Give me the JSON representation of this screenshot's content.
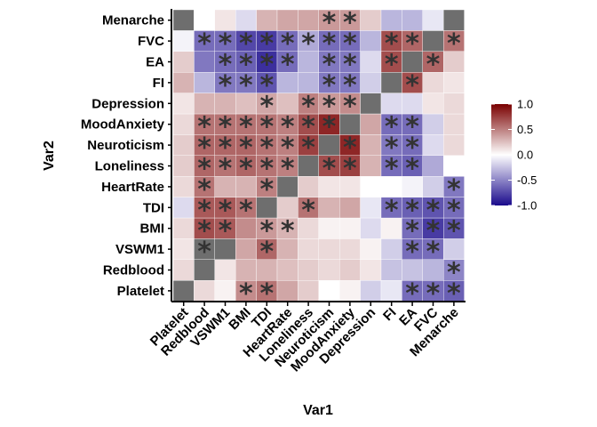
{
  "chart_data": {
    "type": "heatmap",
    "xlabel": "Var1",
    "ylabel": "Var2",
    "variables": [
      "Platelet",
      "Redblood",
      "VSWM1",
      "BMI",
      "TDI",
      "HeartRate",
      "Loneliness",
      "Neuroticism",
      "MoodAnxiety",
      "Depression",
      "FI",
      "EA",
      "FVC",
      "Menarche"
    ],
    "values": [
      [
        null,
        0.15,
        0.05,
        0.45,
        0.55,
        0.35,
        0.2,
        0,
        0.05,
        -0.2,
        -0.1,
        -0.6,
        -0.6,
        -0.65
      ],
      [
        0.15,
        null,
        0.1,
        0.3,
        0.3,
        0.25,
        0.2,
        0.15,
        0.2,
        0.1,
        -0.25,
        -0.25,
        -0.3,
        -0.5
      ],
      [
        0.1,
        null,
        null,
        0.35,
        0.6,
        0.3,
        0.15,
        0.15,
        0.15,
        0.05,
        -0.2,
        -0.6,
        -0.6,
        -0.2
      ],
      [
        0.15,
        0.7,
        0.65,
        0.45,
        0.4,
        0.3,
        0.15,
        0.05,
        0.05,
        -0.15,
        0.05,
        -0.6,
        -0.8,
        -0.7
      ],
      [
        -0.15,
        0.65,
        0.65,
        0.55,
        null,
        0.2,
        0.55,
        0.3,
        0.35,
        -0.1,
        -0.6,
        -0.65,
        -0.7,
        -0.6
      ],
      [
        0.15,
        0.55,
        0.3,
        0.3,
        0.5,
        null,
        0.2,
        0.1,
        0.1,
        0,
        0,
        -0.05,
        -0.2,
        -0.55
      ],
      [
        0.2,
        0.6,
        0.55,
        0.6,
        0.55,
        0.5,
        null,
        0.7,
        0.75,
        0.3,
        -0.6,
        -0.65,
        -0.35,
        0
      ],
      [
        0.2,
        0.6,
        0.6,
        0.6,
        0.55,
        0.5,
        0.75,
        null,
        0.85,
        0.3,
        -0.55,
        -0.6,
        -0.15,
        0.15
      ],
      [
        0.15,
        0.55,
        0.55,
        0.55,
        0.55,
        0.5,
        0.7,
        0.85,
        null,
        0.35,
        -0.6,
        -0.6,
        -0.2,
        0.15
      ],
      [
        0.1,
        0.3,
        0.3,
        0.25,
        0.35,
        0.25,
        0.5,
        0.4,
        0.45,
        null,
        -0.15,
        -0.15,
        0.1,
        0.15
      ],
      [
        0.3,
        -0.3,
        -0.55,
        -0.55,
        -0.7,
        -0.3,
        -0.3,
        -0.55,
        -0.55,
        -0.2,
        null,
        0.7,
        0.15,
        0.1
      ],
      [
        0.2,
        -0.55,
        -0.6,
        -0.65,
        -0.85,
        -0.6,
        -0.3,
        -0.55,
        -0.55,
        -0.15,
        0.7,
        null,
        0.6,
        0.2
      ],
      [
        -0.05,
        -0.6,
        -0.6,
        -0.75,
        -0.8,
        -0.6,
        -0.35,
        -0.6,
        -0.6,
        -0.3,
        0.7,
        0.6,
        null,
        0.55
      ],
      [
        null,
        0,
        0.1,
        -0.15,
        0.3,
        0.35,
        0.35,
        0.4,
        0.4,
        0.2,
        -0.3,
        -0.3,
        -0.1,
        null
      ]
    ],
    "significant": [
      [
        false,
        false,
        false,
        true,
        true,
        false,
        false,
        false,
        false,
        false,
        false,
        true,
        true,
        true
      ],
      [
        false,
        false,
        false,
        false,
        false,
        false,
        false,
        false,
        false,
        false,
        false,
        false,
        false,
        true
      ],
      [
        false,
        true,
        false,
        false,
        true,
        false,
        false,
        false,
        false,
        false,
        false,
        true,
        true,
        false
      ],
      [
        false,
        true,
        true,
        false,
        true,
        true,
        false,
        false,
        false,
        false,
        false,
        true,
        true,
        true
      ],
      [
        false,
        true,
        true,
        true,
        false,
        false,
        true,
        false,
        false,
        false,
        true,
        true,
        true,
        true
      ],
      [
        false,
        true,
        false,
        false,
        true,
        false,
        false,
        false,
        false,
        false,
        false,
        false,
        false,
        true
      ],
      [
        false,
        true,
        true,
        true,
        true,
        true,
        false,
        true,
        true,
        false,
        true,
        true,
        false,
        false
      ],
      [
        false,
        true,
        true,
        true,
        true,
        true,
        true,
        false,
        true,
        false,
        true,
        true,
        false,
        false
      ],
      [
        false,
        true,
        true,
        true,
        true,
        true,
        true,
        true,
        false,
        false,
        true,
        true,
        false,
        false
      ],
      [
        false,
        false,
        false,
        false,
        true,
        false,
        true,
        true,
        true,
        false,
        false,
        false,
        false,
        false
      ],
      [
        false,
        false,
        true,
        true,
        true,
        false,
        false,
        true,
        true,
        false,
        false,
        true,
        false,
        false
      ],
      [
        false,
        false,
        true,
        true,
        true,
        true,
        false,
        true,
        true,
        false,
        true,
        false,
        true,
        false
      ],
      [
        false,
        true,
        true,
        true,
        true,
        true,
        true,
        true,
        true,
        false,
        true,
        true,
        false,
        true
      ],
      [
        false,
        false,
        false,
        false,
        false,
        false,
        false,
        true,
        true,
        false,
        false,
        false,
        false,
        false
      ]
    ],
    "significance_marker": "*",
    "colorscale": {
      "min": -1.0,
      "max": 1.0,
      "low": "#1a0a8c",
      "mid": "#ffffff",
      "high": "#7a0000",
      "na_color": "#6e6e6e",
      "ticks": [
        1.0,
        0.5,
        0.0,
        -0.5,
        -1.0
      ],
      "tick_labels": [
        "1.0",
        "0.5",
        "0.0",
        "-0.5",
        "-1.0"
      ]
    },
    "legend_position": "right"
  }
}
